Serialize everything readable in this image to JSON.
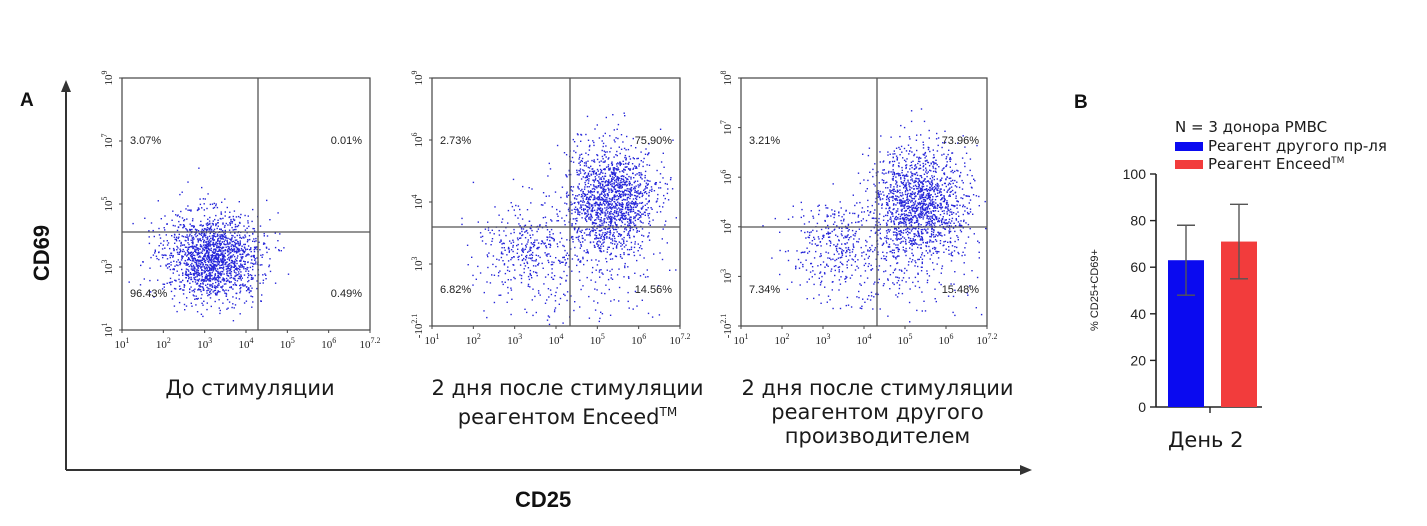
{
  "panel_a": {
    "label": "A",
    "x_axis_label": "CD25",
    "y_axis_label": "CD69",
    "plots": [
      {
        "caption_lines": [
          "До стимуляции"
        ],
        "caption_sup": "",
        "quadrant_values": {
          "upper_left": "3.07%",
          "upper_right": "0.01%",
          "lower_left": "96.43%",
          "lower_right": "0.49%"
        },
        "x_tick_labels": [
          "10^1",
          "10^2",
          "10^3",
          "10^4",
          "10^5",
          "10^6",
          "10^7.2"
        ],
        "y_tick_labels": [
          "10^1",
          "10^3",
          "10^5",
          "10^7",
          "10^9"
        ]
      },
      {
        "caption_lines": [
          "2 дня после стимуляции",
          "реагентом Enceed"
        ],
        "caption_sup": "TM",
        "quadrant_values": {
          "upper_left": "2.73%",
          "upper_right": "75.90%",
          "lower_left": "6.82%",
          "lower_right": "14.56%"
        },
        "x_tick_labels": [
          "10^1",
          "10^2",
          "10^3",
          "10^4",
          "10^5",
          "10^6",
          "10^7.2"
        ],
        "y_tick_labels": [
          "-10^2.1",
          "10^3",
          "10^4",
          "10^6",
          "10^9"
        ]
      },
      {
        "caption_lines": [
          "2 дня после стимуляции",
          "реагентом другого",
          "производителем"
        ],
        "caption_sup": "",
        "quadrant_values": {
          "upper_left": "3.21%",
          "upper_right": "73.96%",
          "lower_left": "7.34%",
          "lower_right": "15.48%"
        },
        "x_tick_labels": [
          "10^1",
          "10^2",
          "10^3",
          "10^4",
          "10^5",
          "10^6",
          "10^7.2"
        ],
        "y_tick_labels": [
          "-10^2.1",
          "10^3",
          "10^4",
          "10^6",
          "10^7",
          "10^8"
        ]
      }
    ]
  },
  "panel_b": {
    "label": "B",
    "legend_header": "N =  3 донора PMBC",
    "legend_items": [
      {
        "label": "Реагент другого пр-ля",
        "sup": "",
        "color": "#0a0af0"
      },
      {
        "label": "Реагент Enceed",
        "sup": "TM",
        "color": "#f23c3c"
      }
    ],
    "x_label": "День 2"
  },
  "chart_data": [
    {
      "type": "scatter",
      "xlabel": "CD25",
      "ylabel": "CD69",
      "quadrants": {
        "upper_left": 3.07,
        "upper_right": 0.01,
        "lower_left": 96.43,
        "lower_right": 0.49
      },
      "population_centers": [
        {
          "x": 3.3,
          "y": 3.6
        }
      ]
    },
    {
      "type": "scatter",
      "xlabel": "CD25",
      "ylabel": "CD69",
      "quadrants": {
        "upper_left": 2.73,
        "upper_right": 75.9,
        "lower_left": 6.82,
        "lower_right": 14.56
      },
      "population_centers": [
        {
          "x": 5.4,
          "y": 5.3
        },
        {
          "x": 3.3,
          "y": 3.6
        }
      ]
    },
    {
      "type": "scatter",
      "xlabel": "CD25",
      "ylabel": "CD69",
      "quadrants": {
        "upper_left": 3.21,
        "upper_right": 73.96,
        "lower_left": 7.34,
        "lower_right": 15.48
      },
      "population_centers": [
        {
          "x": 5.5,
          "y": 5.5
        },
        {
          "x": 3.3,
          "y": 3.8
        }
      ]
    },
    {
      "type": "bar",
      "categories": [
        "День 2"
      ],
      "series": [
        {
          "name": "Реагент другого пр-ля",
          "values": [
            63
          ],
          "error": [
            15
          ],
          "color": "#0a0af0"
        },
        {
          "name": "Реагент EnceedTM",
          "values": [
            71
          ],
          "error": [
            16
          ],
          "color": "#f23c3c"
        }
      ],
      "ylabel": "% CD25+CD69+",
      "ylim": [
        0,
        100
      ],
      "yticks": [
        0,
        20,
        40,
        60,
        80,
        100
      ]
    }
  ]
}
